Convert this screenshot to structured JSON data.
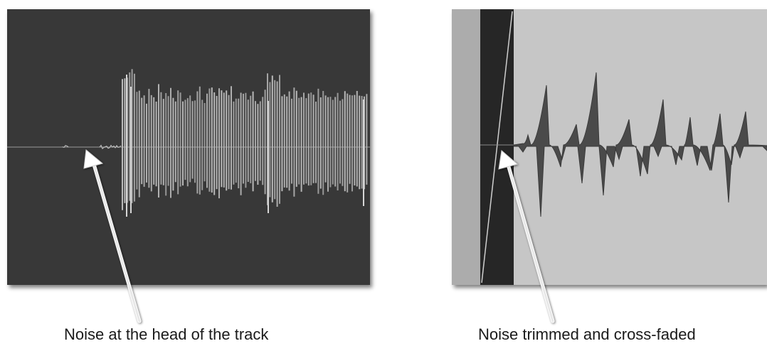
{
  "panels": {
    "left": {
      "caption": "Noise at the head of the track",
      "background": "#373737",
      "waveform_color": "#bdbdbd"
    },
    "right": {
      "caption": "Noise trimmed and cross-faded",
      "background": "#c6c6c6",
      "trimmed_region_color": "#acacac",
      "crossfade_region_color": "#262626",
      "waveform_color": "#4a4a4a"
    }
  },
  "arrow_color": "#ffffff"
}
